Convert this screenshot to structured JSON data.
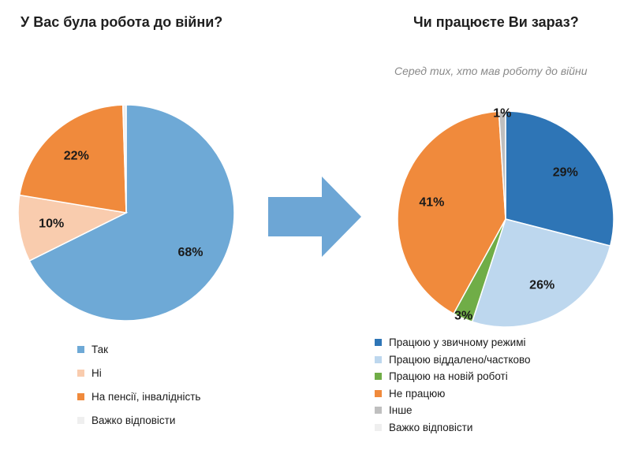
{
  "colors": {
    "arrow": "#6da6d5",
    "slice_border": "#ffffff"
  },
  "chart_data": [
    {
      "type": "pie",
      "title": "У Вас була робота до війни?",
      "subtitle": "",
      "slices": [
        {
          "label": "Так",
          "value": 68,
          "display": "68%",
          "color": "#6ea9d6"
        },
        {
          "label": "Ні",
          "value": 10,
          "display": "10%",
          "color": "#f9ccae"
        },
        {
          "label": "На пенсії, інвалідність",
          "value": 22,
          "display": "22%",
          "color": "#f08a3c"
        },
        {
          "label": "Важко відповісти",
          "value": 0.5,
          "display": "",
          "color": "#efefef"
        }
      ],
      "legend_position": "bottom"
    },
    {
      "type": "pie",
      "title": "Чи працюєте Ви зараз?",
      "subtitle": "Серед тих, хто мав роботу до війни",
      "slices": [
        {
          "label": "Працюю у звичному режимі",
          "value": 29,
          "display": "29%",
          "color": "#2e75b6"
        },
        {
          "label": "Працюю віддалено/частково",
          "value": 26,
          "display": "26%",
          "color": "#bdd7ee"
        },
        {
          "label": "Працюю на новій роботі",
          "value": 3,
          "display": "3%",
          "color": "#70ad47"
        },
        {
          "label": "Не працюю",
          "value": 41,
          "display": "41%",
          "color": "#f08a3c"
        },
        {
          "label": "Інше",
          "value": 1,
          "display": "1%",
          "color": "#bfbfbf"
        },
        {
          "label": "Важко відповісти",
          "value": 0,
          "display": "",
          "color": "#efefef"
        }
      ],
      "legend_position": "bottom"
    }
  ]
}
